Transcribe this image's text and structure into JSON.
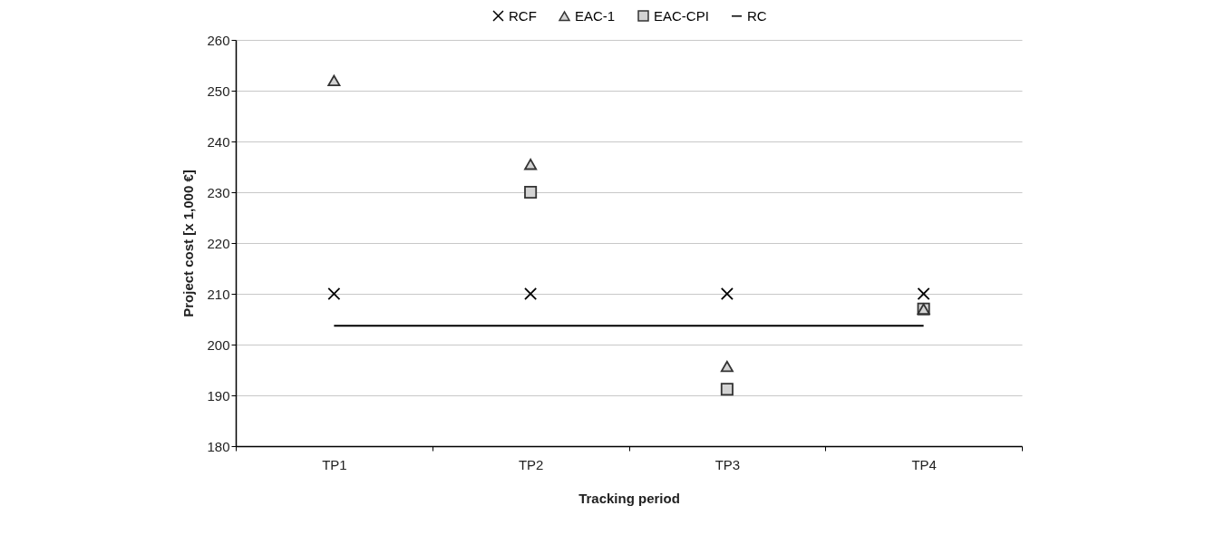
{
  "chart_data": {
    "type": "scatter",
    "xlabel": "Tracking period",
    "ylabel": "Project cost [x 1,000 €]",
    "categories": [
      "TP1",
      "TP2",
      "TP3",
      "TP4"
    ],
    "series": [
      {
        "name": "RCF",
        "marker": "cross",
        "color": "#000000",
        "values": [
          210,
          210,
          210,
          210
        ]
      },
      {
        "name": "EAC-1",
        "marker": "triangle",
        "color": "#d3d3d3",
        "values": [
          252,
          235.5,
          195.7,
          207
        ]
      },
      {
        "name": "EAC-CPI",
        "marker": "square",
        "color": "#d3d3d3",
        "values": [
          null,
          230,
          191.2,
          207
        ]
      },
      {
        "name": "RC",
        "type": "line",
        "marker": "none",
        "color": "#000000",
        "values": [
          203.7,
          203.7,
          203.7,
          203.7
        ]
      }
    ],
    "ylim": [
      180,
      260
    ],
    "yticks": [
      180,
      190,
      200,
      210,
      220,
      230,
      240,
      250,
      260
    ],
    "grid": "y",
    "legend": "top"
  }
}
